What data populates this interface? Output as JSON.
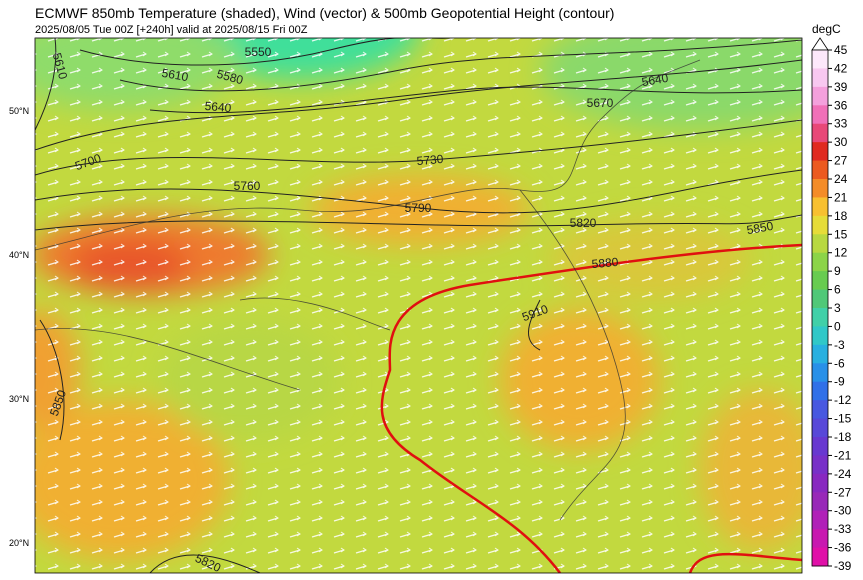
{
  "header": {
    "title": "ECMWF 850mb Temperature (shaded), Wind (vector) & 500mb Geopotential Height (contour)",
    "subtitle": "2025/08/05 Tue 00Z [+240h] valid at 2025/08/15 Fri 00Z"
  },
  "map": {
    "latitude_labels": [
      "50°N",
      "40°N",
      "30°N",
      "20°N"
    ],
    "contour_labels": [
      "5550",
      "5610",
      "5610",
      "5580",
      "5640",
      "5640",
      "5670",
      "5700",
      "5730",
      "5760",
      "5790",
      "5820",
      "5850",
      "5880",
      "5910",
      "5850",
      "5820"
    ]
  },
  "colorbar": {
    "unit": "degC",
    "ticks": [
      45,
      42,
      39,
      36,
      33,
      30,
      27,
      24,
      21,
      18,
      15,
      12,
      9,
      6,
      3,
      0,
      -3,
      -6,
      -9,
      -12,
      -15,
      -18,
      -21,
      -24,
      -27,
      -30,
      -33,
      -36,
      -39
    ]
  }
}
